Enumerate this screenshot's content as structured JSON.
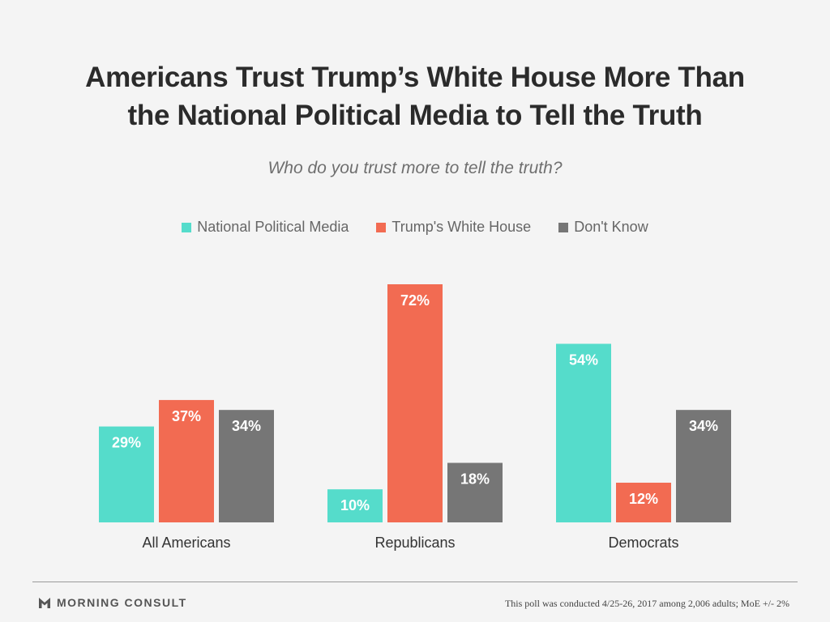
{
  "chart_data": {
    "type": "bar",
    "title_line1": "Americans Trust Trump’s White House More Than",
    "title_line2": "the National Political Media to Tell the Truth",
    "subtitle": "Who do you trust more to tell the truth?",
    "categories": [
      "All Americans",
      "Republicans",
      "Democrats"
    ],
    "series": [
      {
        "name": "National Political Media",
        "color": "#55dccb",
        "values": [
          29,
          10,
          54
        ],
        "labels": [
          "29%",
          "10%",
          "54%"
        ]
      },
      {
        "name": "Trump's White House",
        "color": "#f26b52",
        "values": [
          37,
          72,
          12
        ],
        "labels": [
          "37%",
          "72%",
          "12%"
        ]
      },
      {
        "name": "Don't Know",
        "color": "#767676",
        "values": [
          34,
          18,
          34
        ],
        "labels": [
          "34%",
          "18%",
          "34%"
        ]
      }
    ],
    "ylim": [
      0,
      72
    ],
    "grid": false,
    "legend_position": "top"
  },
  "footer": {
    "brand": "MORNING CONSULT",
    "note": "This poll was conducted 4/25-26, 2017 among 2,006 adults; MoE +/- 2%"
  }
}
